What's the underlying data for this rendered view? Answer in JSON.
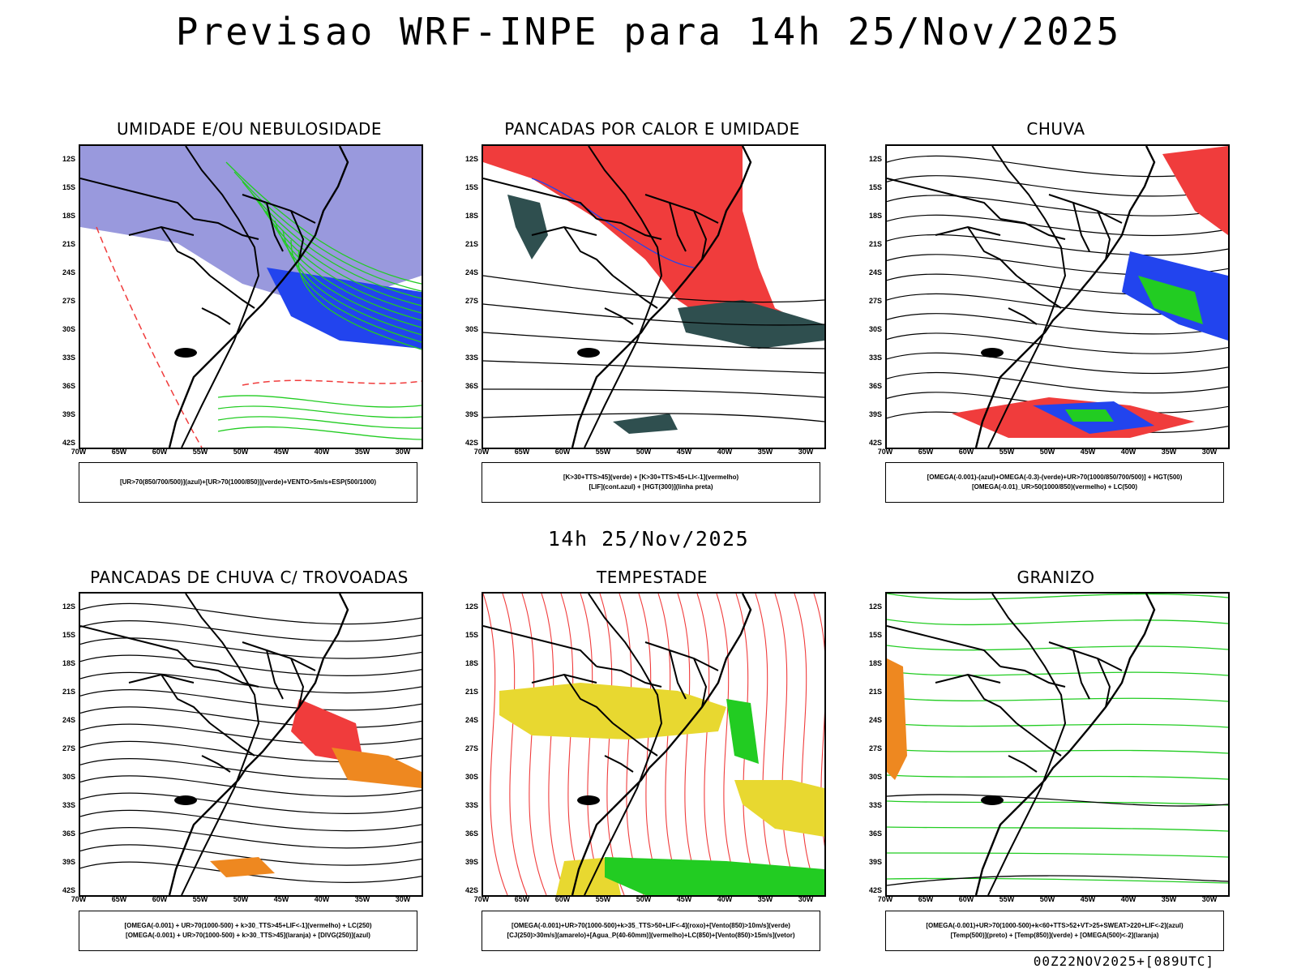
{
  "header": {
    "title": "Previsao WRF-INPE  para 14h 25/Nov/2025"
  },
  "middle": {
    "time_label": "14h 25/Nov/2025"
  },
  "footer": {
    "run_label": "00Z22NOV2025+[089UTC]"
  },
  "axes": {
    "lat_labels": [
      "12S",
      "15S",
      "18S",
      "21S",
      "24S",
      "27S",
      "30S",
      "33S",
      "36S",
      "39S",
      "42S"
    ],
    "lon_labels": [
      "70W",
      "65W",
      "60W",
      "55W",
      "50W",
      "45W",
      "40W",
      "35W",
      "30W"
    ]
  },
  "panels": [
    {
      "title": "UMIDADE E/OU NEBULOSIDADE",
      "legend": [
        "[UR>70(850/700/500)](azul)+[UR>70(1000/850)](verde)+VENTO>5m/s+ESP(500/1000)"
      ]
    },
    {
      "title": "PANCADAS POR CALOR E UMIDADE",
      "legend": [
        "[K>30+TTS>45](verde) + [K>30+TTS>45+LI<-1](vermelho)",
        "[LIF](cont.azul) + [HGT(300)](linha preta)"
      ]
    },
    {
      "title": "CHUVA",
      "legend": [
        "[OMEGA(-0.001)-(azul)+OMEGA(-0.3)-(verde)+UR>70(1000/850/700/500)] + HGT(500)",
        "[OMEGA(-0.01)_UR>50(1000/850)(vermelho) + LC(500)"
      ]
    },
    {
      "title": "PANCADAS DE CHUVA C/ TROVOADAS",
      "legend": [
        "[OMEGA(-0.001) + UR>70(1000-500) + k>30_TTS>45+LIF<-1](vermelho) + LC(250)",
        "[OMEGA(-0.001) + UR>70(1000-500) + k>30_TTS>45](laranja) + [DIVG(250)](azul)"
      ]
    },
    {
      "title": "TEMPESTADE",
      "legend": [
        "[OMEGA(-0.001)+UR>70(1000-500)+k>35_TTS>50+LIF<-4](roxo)+[Vento(850)>10m/s](verde)",
        "[CJ(250)>30m/s](amarelo)+[Agua_P(40-60mm)](vermelho)+LC(850)+[Vento(850)>15m/s](vetor)"
      ]
    },
    {
      "title": "GRANIZO",
      "legend": [
        "[OMEGA(-0.001)+UR>70(1000-500)+k<60+TTS>52+VT>25+SWEAT>220+LIF<-2](azul)",
        "[Temp(500)](preto) + [Temp(850)](verde) + [OMEGA(500)<-2](laranja)"
      ]
    }
  ],
  "colors": {
    "red": "#f03c3c",
    "green": "#22cc22",
    "blue": "#2244ee",
    "lightblue": "#9999dd",
    "darkteal": "#2f4f4f",
    "yellow": "#e8d830",
    "orange": "#ee8820"
  }
}
